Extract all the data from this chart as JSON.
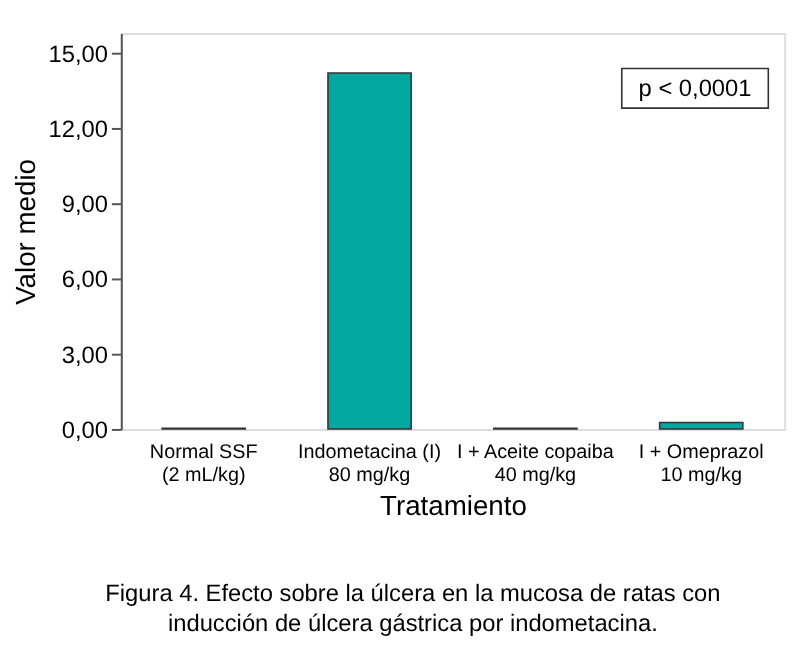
{
  "chart_data": {
    "type": "bar",
    "xlabel": "Tratamiento",
    "ylabel": "Valor medio",
    "categories": [
      "Normal SSF\n(2 mL/kg)",
      "Indometacina (I)\n80 mg/kg",
      "I + Aceite copaiba\n40 mg/kg",
      "I + Omeprazol\n10 mg/kg"
    ],
    "values": [
      0.03,
      14.2,
      0.03,
      0.26
    ],
    "color": "#00a89f",
    "ylim": [
      0,
      15.8
    ],
    "yticks": [
      {
        "value": 0,
        "label": "0,00"
      },
      {
        "value": 3,
        "label": "3,00"
      },
      {
        "value": 6,
        "label": "6,00"
      },
      {
        "value": 9,
        "label": "9,00"
      },
      {
        "value": 12,
        "label": "12,00"
      },
      {
        "value": 15,
        "label": "15,00"
      }
    ],
    "grid": false,
    "annotations": [
      "p < 0,0001",
      "Figura 4. Efecto sobre la úlcera en la mucosa de ratas con\ninducción de úlcera gástrica por indometacina."
    ]
  }
}
